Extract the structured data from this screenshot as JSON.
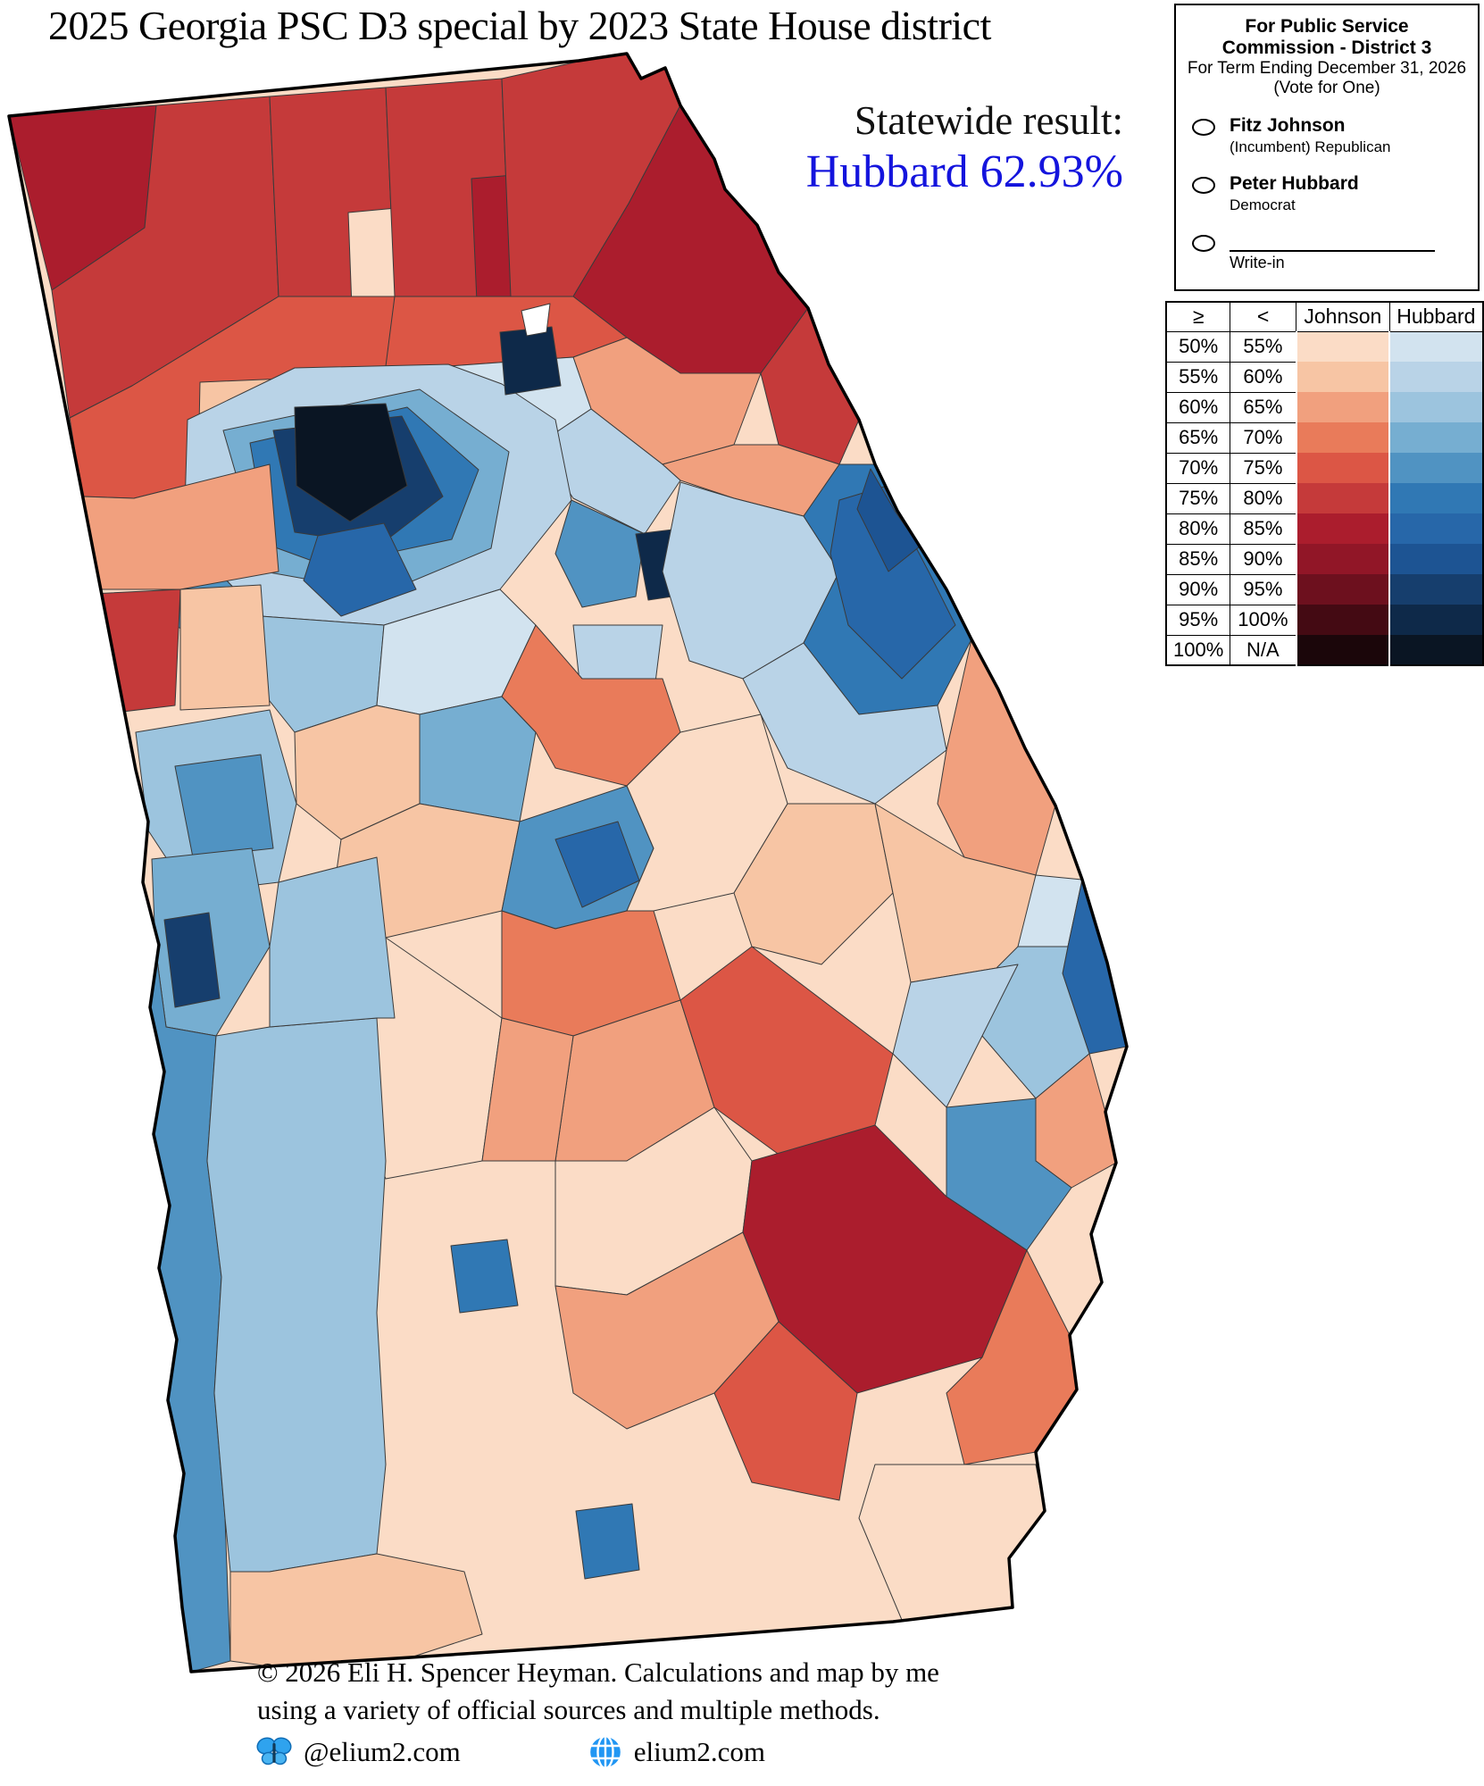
{
  "title": "2025 Georgia PSC D3 special by 2023 State House district",
  "statewide": {
    "label": "Statewide result:",
    "value": "Hubbard 62.93%",
    "value_color": "#1414dd"
  },
  "ballot": {
    "heading_line1": "For Public Service",
    "heading_line2": "Commission - District 3",
    "subheading_line1": "For Term Ending December 31, 2026",
    "subheading_line2": "(Vote for One)",
    "options": [
      {
        "name": "Fitz Johnson",
        "detail": "(Incumbent) Republican"
      },
      {
        "name": "Peter Hubbard",
        "detail": "Democrat"
      }
    ],
    "write_in_label": "Write-in"
  },
  "legend": {
    "headers": [
      "≥",
      "<",
      "Johnson",
      "Hubbard"
    ],
    "rows": [
      {
        "ge": "50%",
        "lt": "55%",
        "johnson": "#fbdcc6",
        "hubbard": "#d2e3ef"
      },
      {
        "ge": "55%",
        "lt": "60%",
        "johnson": "#f7c5a4",
        "hubbard": "#b9d3e7"
      },
      {
        "ge": "60%",
        "lt": "65%",
        "johnson": "#f1a07e",
        "hubbard": "#9cc4de"
      },
      {
        "ge": "65%",
        "lt": "70%",
        "johnson": "#e97b5a",
        "hubbard": "#76aed1"
      },
      {
        "ge": "70%",
        "lt": "75%",
        "johnson": "#dc5645",
        "hubbard": "#5093c2"
      },
      {
        "ge": "75%",
        "lt": "80%",
        "johnson": "#c53a3a",
        "hubbard": "#3078b4"
      },
      {
        "ge": "80%",
        "lt": "85%",
        "johnson": "#ab1d2d",
        "hubbard": "#2767a9"
      },
      {
        "ge": "85%",
        "lt": "90%",
        "johnson": "#911627",
        "hubbard": "#1d5493"
      },
      {
        "ge": "90%",
        "lt": "95%",
        "johnson": "#6d101e",
        "hubbard": "#163e6d"
      },
      {
        "ge": "95%",
        "lt": "100%",
        "johnson": "#440a13",
        "hubbard": "#0e2949"
      },
      {
        "ge": "100%",
        "lt": "N/A",
        "johnson": "#1b060a",
        "hubbard": "#0a1523"
      }
    ]
  },
  "footer": {
    "copyright_line1": "© 2026 Eli H. Spencer Heyman. Calculations and map by me",
    "copyright_line2": "using a variety of official sources and multiple methods.",
    "social": [
      {
        "icon": "butterfly-icon",
        "text": "@elium2.com"
      },
      {
        "icon": "globe-icon",
        "text": "elium2.com"
      }
    ]
  }
}
